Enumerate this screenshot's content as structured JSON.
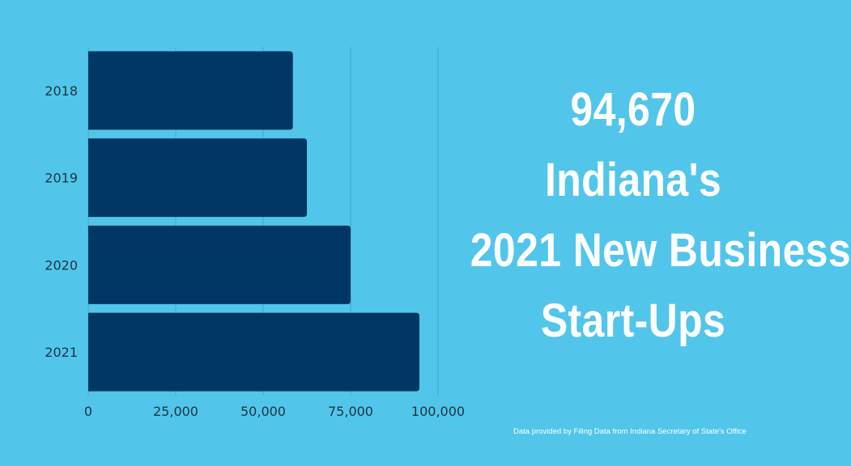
{
  "colors": {
    "background": "#52c6ea",
    "bar": "#003764",
    "headline": "#ffffff",
    "gridline": "#3aa9cf"
  },
  "headline": {
    "line1": "94,670",
    "line2": "Indiana's",
    "line3": "2021 New Business",
    "line4": "Start-Ups"
  },
  "source_note": "Data provided by Filing Data from Indiana Secretary of State's Office",
  "chart_data": {
    "type": "bar",
    "orientation": "horizontal",
    "categories": [
      "2018",
      "2019",
      "2020",
      "2021"
    ],
    "values": [
      58500,
      62500,
      75000,
      94670
    ],
    "xlim": [
      0,
      100000
    ],
    "xticks": [
      0,
      25000,
      50000,
      75000,
      100000
    ],
    "xtick_labels": [
      "0",
      "25,000",
      "50,000",
      "75,000",
      "100,000"
    ],
    "grid": true,
    "legend": "none"
  }
}
